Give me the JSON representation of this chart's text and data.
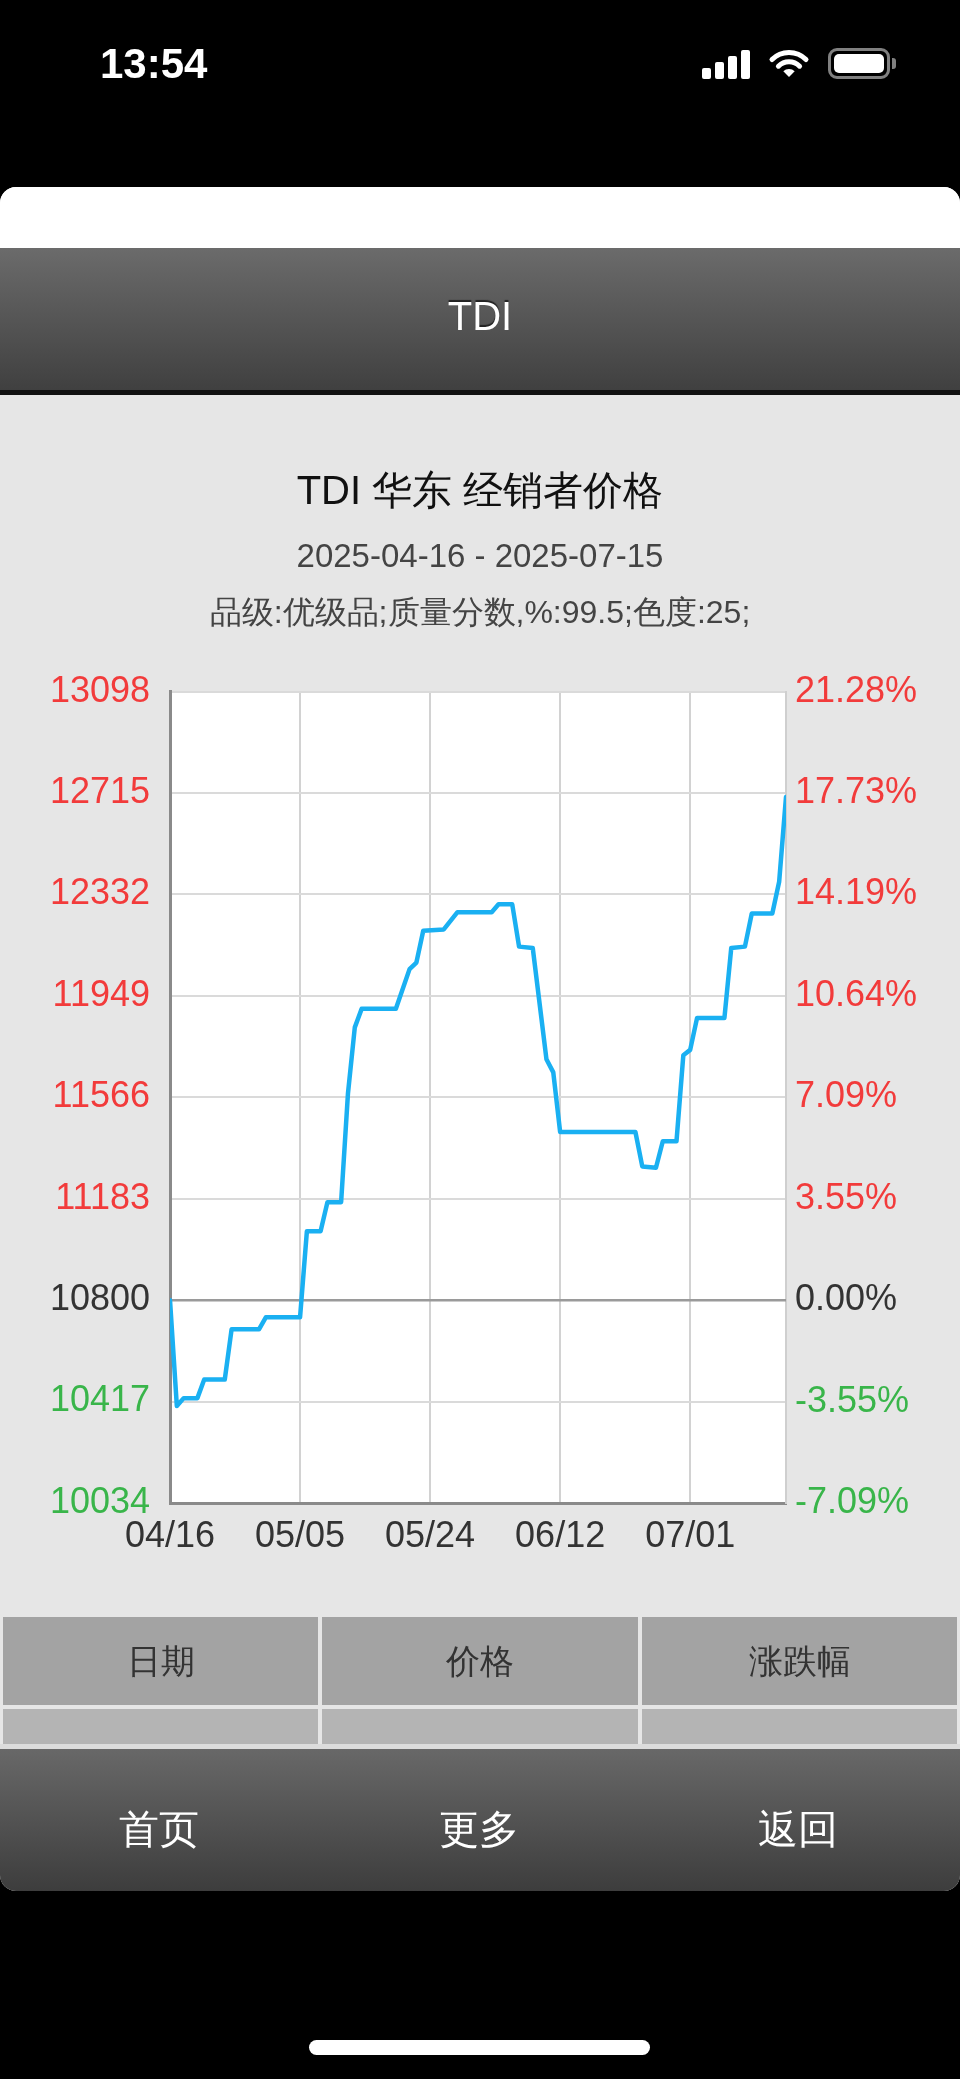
{
  "chart_data": {
    "type": "line",
    "title": "TDI 华东 经销者价格",
    "subtitle": "2025-04-16 - 2025-07-15",
    "annotations": [
      "品级:优级品;质量分数,%:99.5;色度:25;",
      "TDI",
      "日期",
      "价格",
      "涨跌幅",
      "首页",
      "更多",
      "返回",
      "13:54"
    ],
    "x": [
      "2025-04-16",
      "2025-04-17",
      "2025-04-18",
      "2025-04-20",
      "2025-04-21",
      "2025-04-24",
      "2025-04-25",
      "2025-04-29",
      "2025-04-30",
      "2025-05-05",
      "2025-05-06",
      "2025-05-08",
      "2025-05-09",
      "2025-05-11",
      "2025-05-12",
      "2025-05-13",
      "2025-05-14",
      "2025-05-19",
      "2025-05-21",
      "2025-05-22",
      "2025-05-23",
      "2025-05-26",
      "2025-05-28",
      "2025-06-02",
      "2025-06-03",
      "2025-06-05",
      "2025-06-06",
      "2025-06-08",
      "2025-06-10",
      "2025-06-11",
      "2025-06-12",
      "2025-06-23",
      "2025-06-24",
      "2025-06-26",
      "2025-06-27",
      "2025-06-29",
      "2025-06-30",
      "2025-07-01",
      "2025-07-02",
      "2025-07-06",
      "2025-07-07",
      "2025-07-09",
      "2025-07-10",
      "2025-07-13",
      "2025-07-14",
      "2025-07-15"
    ],
    "series": [
      {
        "color": "#1ab0f2",
        "values": [
          10800,
          10400,
          10430,
          10430,
          10500,
          10500,
          10690,
          10690,
          10735,
          10735,
          11060,
          11060,
          11170,
          11170,
          11580,
          11830,
          11900,
          11900,
          12050,
          12075,
          12195,
          12200,
          12265,
          12265,
          12295,
          12295,
          12135,
          12130,
          11710,
          11660,
          11435,
          11435,
          11305,
          11300,
          11400,
          11400,
          11725,
          11745,
          11865,
          11865,
          12130,
          12135,
          12260,
          12260,
          12380,
          12700
        ]
      }
    ],
    "xlim": [
      "2025-04-16",
      "2025-07-15"
    ],
    "xticks": [
      {
        "value": "2025-04-16",
        "label": "04/16"
      },
      {
        "value": "2025-05-05",
        "label": "05/05"
      },
      {
        "value": "2025-05-24",
        "label": "05/24"
      },
      {
        "value": "2025-06-12",
        "label": "06/12"
      },
      {
        "value": "2025-07-01",
        "label": "07/01"
      }
    ],
    "ylim": [
      10034,
      13098
    ],
    "yticks": [
      10034,
      10417,
      10800,
      11183,
      11566,
      11949,
      12332,
      12715,
      13098
    ],
    "y2lim": [
      -7.09,
      21.28
    ],
    "y2ticks": [
      {
        "value": -7.09,
        "label": "-7.09%"
      },
      {
        "value": -3.55,
        "label": "-3.55%"
      },
      {
        "value": 0,
        "label": "0.00%"
      },
      {
        "value": 3.55,
        "label": "3.55%"
      },
      {
        "value": 7.09,
        "label": "7.09%"
      },
      {
        "value": 10.64,
        "label": "10.64%"
      },
      {
        "value": 14.19,
        "label": "14.19%"
      },
      {
        "value": 17.73,
        "label": "17.73%"
      },
      {
        "value": 21.28,
        "label": "21.28%"
      }
    ],
    "ref_lines": [
      {
        "axis": "y",
        "value": 10800,
        "color": "#9a9a9a"
      }
    ],
    "grid": true
  }
}
